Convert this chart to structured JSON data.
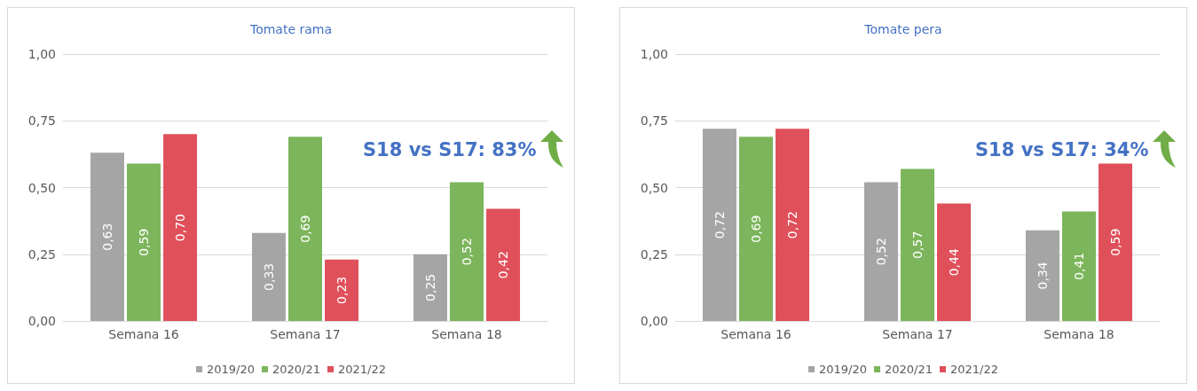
{
  "chart_data": [
    {
      "type": "bar",
      "title": "Tomate rama",
      "categories": [
        "Semana 16",
        "Semana 17",
        "Semana 18"
      ],
      "series": [
        {
          "name": "2019/20",
          "color": "#a5a5a5",
          "values": [
            0.63,
            0.33,
            0.25
          ],
          "value_labels": [
            "0,63",
            "0,33",
            "0,25"
          ]
        },
        {
          "name": "2020/21",
          "color": "#7cb55b",
          "values": [
            0.59,
            0.69,
            0.52
          ],
          "value_labels": [
            "0,59",
            "0,69",
            "0,52"
          ]
        },
        {
          "name": "2021/22",
          "color": "#e0505a",
          "values": [
            0.7,
            0.23,
            0.42
          ],
          "value_labels": [
            "0,70",
            "0,23",
            "0,42"
          ]
        }
      ],
      "ylim": [
        0,
        1
      ],
      "yticks": [
        {
          "value": 0,
          "label": "0,00"
        },
        {
          "value": 0.25,
          "label": "0,25"
        },
        {
          "value": 0.5,
          "label": "0,50"
        },
        {
          "value": 0.75,
          "label": "0,75"
        },
        {
          "value": 1,
          "label": "1,00"
        }
      ],
      "grid": "y",
      "legend": "bottom",
      "annotations": [
        "S18 vs S17: 83%"
      ]
    },
    {
      "type": "bar",
      "title": "Tomate pera",
      "categories": [
        "Semana 16",
        "Semana 17",
        "Semana 18"
      ],
      "series": [
        {
          "name": "2019/20",
          "color": "#a5a5a5",
          "values": [
            0.72,
            0.52,
            0.34
          ],
          "value_labels": [
            "0,72",
            "0,52",
            "0,34"
          ]
        },
        {
          "name": "2020/21",
          "color": "#7cb55b",
          "values": [
            0.69,
            0.57,
            0.41
          ],
          "value_labels": [
            "0,69",
            "0,57",
            "0,41"
          ]
        },
        {
          "name": "2021/22",
          "color": "#e0505a",
          "values": [
            0.72,
            0.44,
            0.59
          ],
          "value_labels": [
            "0,72",
            "0,44",
            "0,59"
          ]
        }
      ],
      "ylim": [
        0,
        1
      ],
      "yticks": [
        {
          "value": 0,
          "label": "0,00"
        },
        {
          "value": 0.25,
          "label": "0,25"
        },
        {
          "value": 0.5,
          "label": "0,50"
        },
        {
          "value": 0.75,
          "label": "0,75"
        },
        {
          "value": 1,
          "label": "1,00"
        }
      ],
      "grid": "y",
      "legend": "bottom",
      "annotations": [
        "S18 vs S17: 34%"
      ]
    }
  ]
}
